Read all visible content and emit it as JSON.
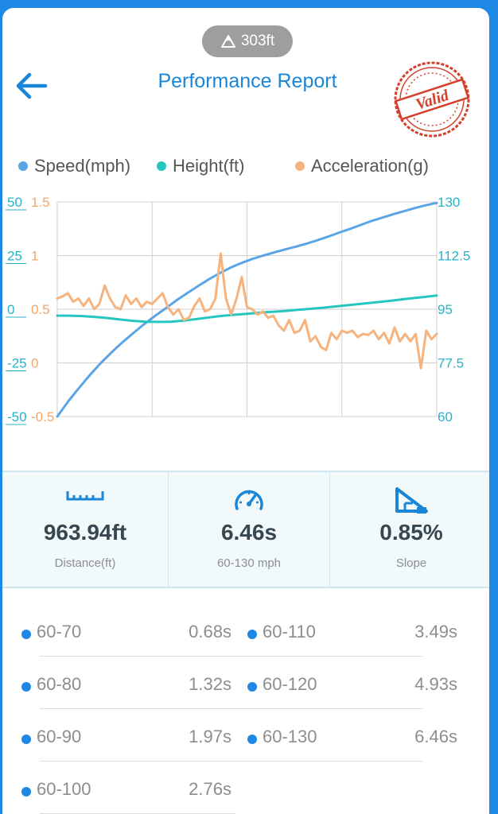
{
  "header": {
    "altitude": "303ft",
    "title": "Performance Report",
    "stamp_text": "Valid"
  },
  "legend": [
    {
      "label": "Speed(mph)",
      "color": "#5aa5e6"
    },
    {
      "label": "Height(ft)",
      "color": "#26c6c0"
    },
    {
      "label": "Acceleration(g)",
      "color": "#f6b37e"
    }
  ],
  "chart_data": {
    "type": "line",
    "grid": true,
    "x_divisions": 4,
    "axes": {
      "height": {
        "ticks": [
          "50",
          "25",
          "0",
          "-25",
          "-50"
        ],
        "range": [
          -50,
          50
        ],
        "color": "#26b3c8",
        "side": "left-outer"
      },
      "acceleration": {
        "ticks": [
          "1.5",
          "1",
          "0.5",
          "0",
          "-0.5"
        ],
        "range": [
          -0.5,
          1.5
        ],
        "color": "#f2a66b",
        "side": "left-inner"
      },
      "speed": {
        "ticks": [
          "130",
          "112.5",
          "95",
          "77.5",
          "60"
        ],
        "range": [
          60,
          130
        ],
        "color": "#26b3c8",
        "side": "right"
      }
    },
    "series": [
      {
        "name": "Speed(mph)",
        "axis": "speed",
        "color": "#5aa5e6",
        "values": [
          60,
          64.9,
          69.3,
          73.5,
          77.4,
          80.9,
          84.2,
          87.2,
          90.1,
          92.8,
          95.3,
          97.9,
          100.3,
          102.6,
          104.8,
          106.8,
          108.6,
          110.1,
          111.4,
          112.5,
          113.5,
          114.5,
          115.4,
          116.4,
          117.5,
          118.7,
          120,
          121.2,
          122.5,
          123.8,
          124.9,
          126,
          127,
          128,
          128.9,
          129.7
        ]
      },
      {
        "name": "Height(ft)",
        "axis": "height",
        "color": "#26c6c0",
        "values": [
          -3,
          -3,
          -3.2,
          -3.6,
          -4.1,
          -4.8,
          -5.4,
          -5.8,
          -5.9,
          -5.8,
          -5.3,
          -4.6,
          -3.8,
          -3.1,
          -2.6,
          -2.1,
          -1.6,
          -1.2,
          -0.8,
          -0.3,
          0.2,
          0.7,
          1.3,
          1.9,
          2.5,
          3.1,
          3.7,
          4.4,
          5.1,
          5.7,
          6.4
        ]
      },
      {
        "name": "Acceleration(g)",
        "axis": "acceleration",
        "color": "#f6b37e",
        "values": [
          0.6,
          0.62,
          0.65,
          0.57,
          0.6,
          0.53,
          0.6,
          0.5,
          0.55,
          0.72,
          0.6,
          0.52,
          0.5,
          0.63,
          0.55,
          0.6,
          0.52,
          0.57,
          0.55,
          0.6,
          0.65,
          0.52,
          0.45,
          0.5,
          0.4,
          0.42,
          0.53,
          0.6,
          0.48,
          0.5,
          0.6,
          1.02,
          0.6,
          0.45,
          0.6,
          0.8,
          0.52,
          0.5,
          0.45,
          0.48,
          0.42,
          0.44,
          0.35,
          0.3,
          0.4,
          0.28,
          0.3,
          0.4,
          0.2,
          0.25,
          0.15,
          0.12,
          0.28,
          0.22,
          0.3,
          0.28,
          0.3,
          0.24,
          0.27,
          0.26,
          0.3,
          0.22,
          0.28,
          0.18,
          0.33,
          0.2,
          0.27,
          0.2,
          0.27,
          -0.05,
          0.3,
          0.22,
          0.27
        ]
      }
    ]
  },
  "stats": [
    {
      "value": "963.94ft",
      "label": "Distance(ft)",
      "icon": "ruler-icon"
    },
    {
      "value": "6.46s",
      "label": "60-130 mph",
      "icon": "speedometer-icon"
    },
    {
      "value": "0.85%",
      "label": "Slope",
      "icon": "slope-icon"
    }
  ],
  "splits": [
    {
      "left": {
        "name": "60-70",
        "time": "0.68s"
      },
      "right": {
        "name": "60-110",
        "time": "3.49s"
      }
    },
    {
      "left": {
        "name": "60-80",
        "time": "1.32s"
      },
      "right": {
        "name": "60-120",
        "time": "4.93s"
      }
    },
    {
      "left": {
        "name": "60-90",
        "time": "1.97s"
      },
      "right": {
        "name": "60-130",
        "time": "6.46s"
      }
    },
    {
      "left": {
        "name": "60-100",
        "time": "2.76s"
      },
      "right": null
    }
  ]
}
